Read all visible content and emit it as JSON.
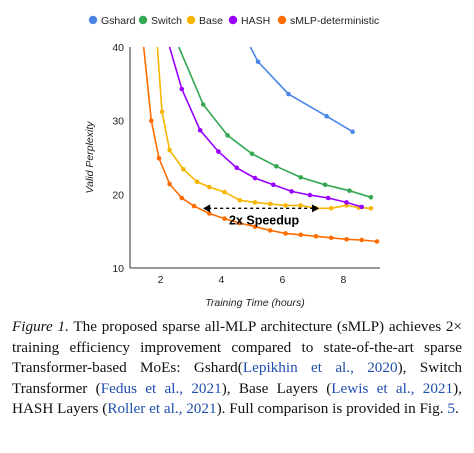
{
  "chart_data": {
    "type": "line",
    "title": "",
    "xlabel": "Training Time (hours)",
    "ylabel": "Valid Perplexity",
    "xlim": [
      1,
      9.2
    ],
    "ylim": [
      10,
      40
    ],
    "xticks": [
      2,
      4,
      6,
      8
    ],
    "yticks": [
      10,
      20,
      30,
      40
    ],
    "grid": false,
    "legend_position": "top",
    "series": [
      {
        "name": "Gshard",
        "color": "#4a86e8",
        "x": [
          4.95,
          5.2,
          6.2,
          7.45,
          8.3
        ],
        "y": [
          40,
          38.0,
          33.6,
          30.6,
          28.5
        ]
      },
      {
        "name": "Switch",
        "color": "#34a853",
        "x": [
          2.6,
          3.4,
          4.2,
          5.0,
          5.8,
          6.6,
          7.4,
          8.2,
          8.9
        ],
        "y": [
          40,
          32.2,
          28.0,
          25.5,
          23.8,
          22.3,
          21.3,
          20.5,
          19.6
        ]
      },
      {
        "name": "Base",
        "color": "#f6b600",
        "x": [
          1.9,
          2.05,
          2.3,
          2.75,
          3.2,
          3.6,
          4.1,
          4.6,
          5.1,
          5.6,
          6.1,
          6.6,
          7.1,
          7.6,
          8.1,
          8.5,
          8.9
        ],
        "y": [
          40,
          31.2,
          26.0,
          23.4,
          21.7,
          21.0,
          20.3,
          19.2,
          18.9,
          18.7,
          18.5,
          18.5,
          18.1,
          18.1,
          18.5,
          18.2,
          18.1
        ]
      },
      {
        "name": "HASH",
        "color": "#9900ff",
        "x": [
          2.3,
          2.7,
          3.3,
          3.9,
          4.5,
          5.1,
          5.7,
          6.3,
          6.9,
          7.5,
          8.1,
          8.6
        ],
        "y": [
          40,
          34.3,
          28.7,
          25.8,
          23.6,
          22.2,
          21.3,
          20.4,
          19.9,
          19.5,
          18.9,
          18.3
        ]
      },
      {
        "name": "sMLP-deterministic",
        "color": "#ff6d01",
        "x": [
          1.45,
          1.7,
          1.95,
          2.3,
          2.7,
          3.1,
          3.6,
          4.1,
          4.6,
          5.1,
          5.6,
          6.1,
          6.6,
          7.1,
          7.6,
          8.1,
          8.6,
          9.1
        ],
        "y": [
          40,
          30.0,
          24.9,
          21.4,
          19.5,
          18.4,
          17.4,
          16.7,
          16.1,
          15.6,
          15.1,
          14.7,
          14.5,
          14.3,
          14.1,
          13.9,
          13.8,
          13.6
        ]
      }
    ],
    "annotation": {
      "text": "2x Speedup",
      "from": [
        3.4,
        18.1
      ],
      "to": [
        7.2,
        18.1
      ]
    }
  },
  "caption": {
    "label": "Figure 1.",
    "part1": " The proposed sparse all-MLP architecture (sMLP) achieves 2× training efficiency improvement compared to state-of-the-art sparse Transformer-based MoEs: Gshard(",
    "cite1": "Lepikhin et al., 2020",
    "part2": "), Switch Transformer (",
    "cite2": "Fedus et al., 2021",
    "part3": "), Base Layers (",
    "cite3": "Lewis et al., 2021",
    "part4": "), HASH Layers (",
    "cite4": "Roller et al., 2021",
    "part5": "). Full comparison is provided in Fig. ",
    "cite5": "5",
    "part6": "."
  }
}
